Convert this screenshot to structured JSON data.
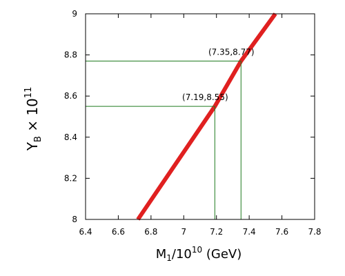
{
  "chart_data": {
    "type": "line",
    "title": "",
    "xaxis": {
      "label_main": "M",
      "label_sub": "1",
      "label_rest": "/10",
      "label_sup": "10",
      "label_unit": " (GeV)",
      "range": [
        6.4,
        7.8
      ],
      "ticks": [
        6.4,
        6.6,
        6.8,
        7,
        7.2,
        7.4,
        7.6,
        7.8
      ],
      "tick_labels": [
        "6.4",
        "6.6",
        "6.8",
        "7",
        "7.2",
        "7.4",
        "7.6",
        "7.8"
      ]
    },
    "yaxis": {
      "label_main": "Y",
      "label_sub": "B",
      "label_rest": " × 10",
      "label_sup": "11",
      "range": [
        8,
        9
      ],
      "ticks": [
        8,
        8.2,
        8.4,
        8.6,
        8.8,
        9
      ],
      "tick_labels": [
        "8",
        "8.2",
        "8.4",
        "8.6",
        "8.8",
        "9"
      ]
    },
    "grid": false,
    "series": [
      {
        "color": "#e02020",
        "x": [
          6.72,
          7.19,
          7.35,
          7.56
        ],
        "y": [
          8.0,
          8.55,
          8.77,
          9.0
        ]
      }
    ],
    "reference_lines": {
      "color": "#1e7a1e",
      "points": [
        {
          "x": 7.19,
          "y": 8.55,
          "label": "(7.19,8.55)"
        },
        {
          "x": 7.35,
          "y": 8.77,
          "label": "(7.35,8.77)"
        }
      ]
    }
  }
}
